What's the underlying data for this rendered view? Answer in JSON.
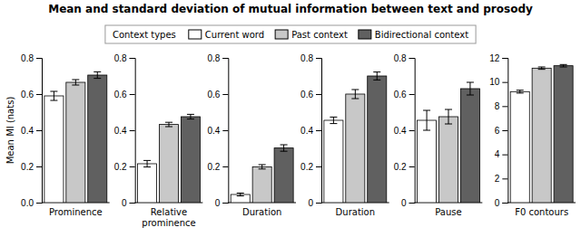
{
  "chart_data": [
    {
      "type": "bar",
      "title": "Mean and standard deviation of mutual information between text and prosody",
      "ylabel": "Mean MI (nats)",
      "legend_title": "Context types",
      "legend": "top",
      "xlabel": "Prominence",
      "ylim": [
        0,
        0.8
      ],
      "yticks": [
        {
          "value": 0,
          "label": "0.0"
        },
        0.2,
        0.4,
        0.6,
        0.8
      ],
      "series": [
        {
          "name": "Current word",
          "color": "#ffffff",
          "values": [
            0.59
          ],
          "errors": [
            0.025
          ]
        },
        {
          "name": "Past context",
          "color": "#c8c8c8",
          "values": [
            0.665
          ],
          "errors": [
            0.015
          ]
        },
        {
          "name": "Bidirectional context",
          "color": "#606060",
          "values": [
            0.705
          ],
          "errors": [
            0.018
          ]
        }
      ]
    },
    {
      "type": "bar",
      "xlabel": "Relative\nprominence",
      "ylim": [
        0,
        0.8
      ],
      "yticks": [
        0,
        0.2,
        0.4,
        0.6,
        0.8
      ],
      "series": [
        {
          "color": "#ffffff",
          "values": [
            0.215
          ],
          "errors": [
            0.018
          ]
        },
        {
          "color": "#c8c8c8",
          "values": [
            0.432
          ],
          "errors": [
            0.012
          ]
        },
        {
          "color": "#606060",
          "values": [
            0.475
          ],
          "errors": [
            0.013
          ]
        }
      ]
    },
    {
      "type": "bar",
      "xlabel": "Duration",
      "ylim": [
        0,
        0.8
      ],
      "yticks": [
        0,
        0.2,
        0.4,
        0.6,
        0.8
      ],
      "series": [
        {
          "color": "#ffffff",
          "values": [
            0.045
          ],
          "errors": [
            0.008
          ]
        },
        {
          "color": "#c8c8c8",
          "values": [
            0.198
          ],
          "errors": [
            0.012
          ]
        },
        {
          "color": "#606060",
          "values": [
            0.302
          ],
          "errors": [
            0.018
          ]
        }
      ]
    },
    {
      "type": "bar",
      "xlabel": "Duration",
      "ylim": [
        0,
        0.8
      ],
      "yticks": [
        0,
        0.2,
        0.4,
        0.6,
        0.8
      ],
      "series": [
        {
          "color": "#ffffff",
          "values": [
            0.455
          ],
          "errors": [
            0.018
          ]
        },
        {
          "color": "#c8c8c8",
          "values": [
            0.6
          ],
          "errors": [
            0.025
          ]
        },
        {
          "color": "#606060",
          "values": [
            0.7
          ],
          "errors": [
            0.022
          ]
        }
      ]
    },
    {
      "type": "bar",
      "xlabel": "Pause",
      "ylim": [
        0,
        0.8
      ],
      "yticks": [
        0,
        0.2,
        0.4,
        0.6,
        0.8
      ],
      "series": [
        {
          "color": "#ffffff",
          "values": [
            0.455
          ],
          "errors": [
            0.055
          ]
        },
        {
          "color": "#c8c8c8",
          "values": [
            0.475
          ],
          "errors": [
            0.04
          ]
        },
        {
          "color": "#606060",
          "values": [
            0.63
          ],
          "errors": [
            0.035
          ]
        }
      ]
    },
    {
      "type": "bar",
      "xlabel": "F0 contours",
      "ylim": [
        0,
        12
      ],
      "yticks": [
        0,
        2,
        4,
        6,
        8,
        10,
        12
      ],
      "series": [
        {
          "color": "#ffffff",
          "values": [
            9.2
          ],
          "errors": [
            0.12
          ]
        },
        {
          "color": "#c8c8c8",
          "values": [
            11.15
          ],
          "errors": [
            0.1
          ]
        },
        {
          "color": "#606060",
          "values": [
            11.35
          ],
          "errors": [
            0.1
          ]
        }
      ]
    }
  ]
}
